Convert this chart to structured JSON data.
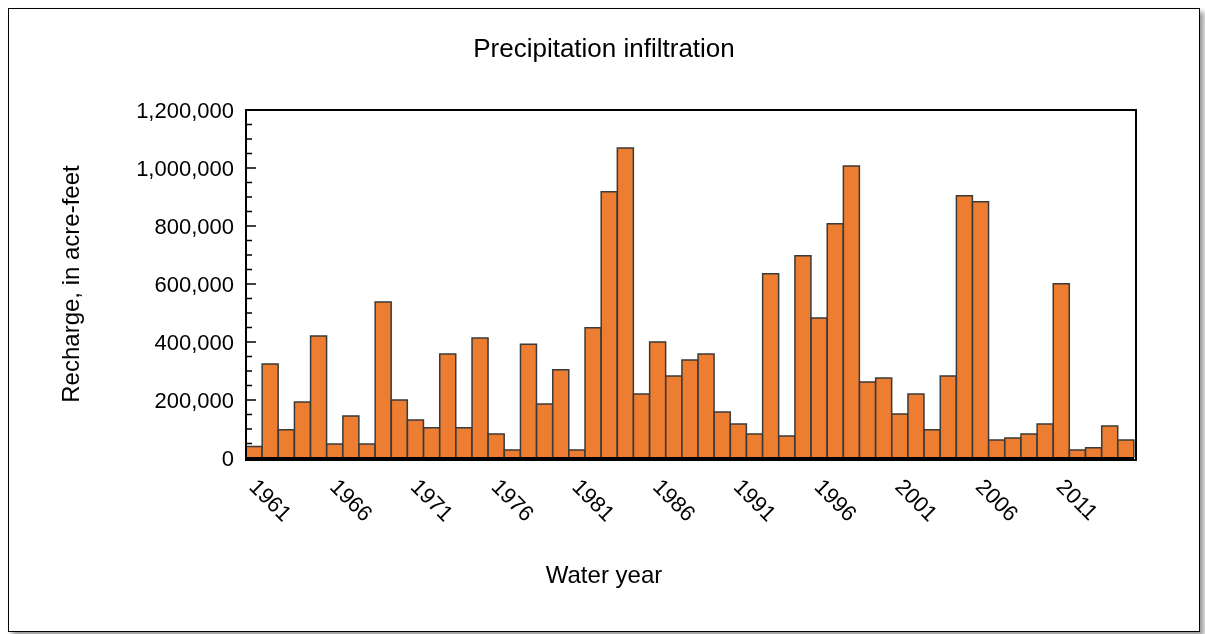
{
  "chart_data": {
    "type": "bar",
    "title": "Precipitation  infiltration",
    "xlabel": "Water year",
    "ylabel": "Recharge, in acre-feet",
    "categories": [
      "1961",
      null,
      null,
      null,
      null,
      "1966",
      null,
      null,
      null,
      null,
      "1971",
      null,
      null,
      null,
      null,
      "1976",
      null,
      null,
      null,
      null,
      "1981",
      null,
      null,
      null,
      null,
      "1986",
      null,
      null,
      null,
      null,
      "1991",
      null,
      null,
      null,
      null,
      "1996",
      null,
      null,
      null,
      null,
      "2001",
      null,
      null,
      null,
      null,
      "2006",
      null,
      null,
      null,
      null,
      "2011",
      null,
      null,
      null,
      null
    ],
    "values": [
      40000,
      324000,
      97000,
      193000,
      421000,
      48000,
      145000,
      48000,
      538000,
      200000,
      131000,
      104000,
      359000,
      104000,
      414000,
      83000,
      28000,
      392000,
      186000,
      304000,
      28000,
      449000,
      918000,
      1069000,
      221000,
      400000,
      283000,
      338000,
      359000,
      159000,
      117000,
      83000,
      635000,
      76000,
      697000,
      483000,
      808000,
      1007000,
      262000,
      276000,
      152000,
      221000,
      97000,
      283000,
      904000,
      884000,
      62000,
      69000,
      83000,
      117000,
      601000,
      28000,
      35000,
      110000,
      62000
    ],
    "color": "#ed7d31",
    "ylim": [
      0,
      1200000
    ],
    "yticks": [
      0,
      {
        "value": 50000,
        "label": null
      },
      {
        "value": 100000,
        "label": null
      },
      {
        "value": 150000,
        "label": null
      },
      {
        "value": 200000,
        "label": "200,000"
      },
      {
        "value": 250000,
        "label": null
      },
      {
        "value": 300000,
        "label": null
      },
      {
        "value": 350000,
        "label": null
      },
      {
        "value": 400000,
        "label": "400,000"
      },
      {
        "value": 450000,
        "label": null
      },
      {
        "value": 500000,
        "label": null
      },
      {
        "value": 550000,
        "label": null
      },
      {
        "value": 600000,
        "label": "600,000"
      },
      {
        "value": 650000,
        "label": null
      },
      {
        "value": 700000,
        "label": null
      },
      {
        "value": 750000,
        "label": null
      },
      {
        "value": 800000,
        "label": "800,000"
      },
      {
        "value": 850000,
        "label": null
      },
      {
        "value": 900000,
        "label": null
      },
      {
        "value": 950000,
        "label": null
      },
      {
        "value": 1000000,
        "label": "1,000,000"
      },
      {
        "value": 1050000,
        "label": null
      },
      {
        "value": 1100000,
        "label": null
      },
      {
        "value": 1150000,
        "label": null
      },
      {
        "value": 1200000,
        "label": "1,200,000"
      }
    ],
    "grid": false,
    "legend": false
  }
}
